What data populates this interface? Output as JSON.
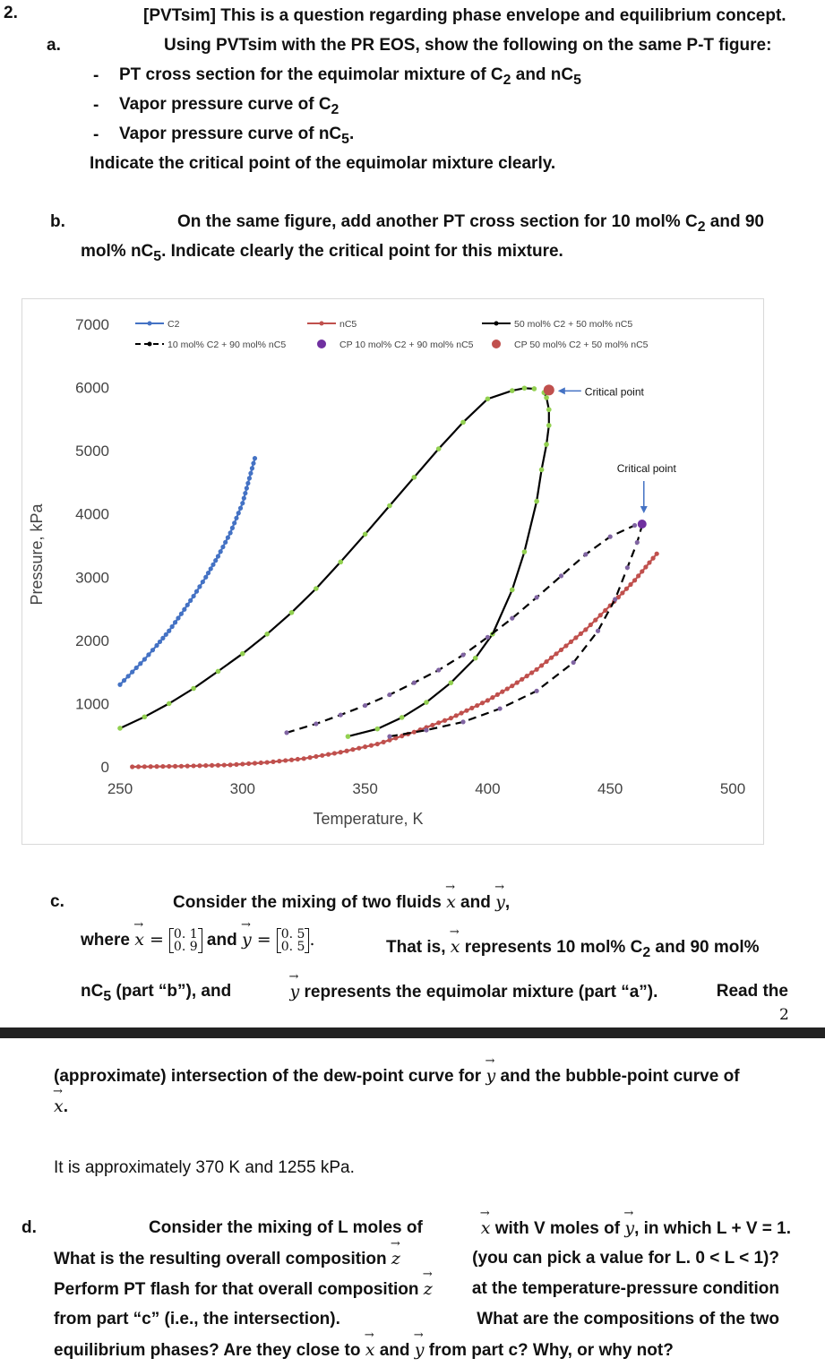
{
  "q2": {
    "number": "2.",
    "a_label": "a.",
    "intro_line1": "[PVTsim] This is a question regarding phase envelope and equilibrium concept.",
    "intro_line2": "Using PVTsim with the PR EOS, show the following on the same P-T figure:",
    "bullet_dash": "-",
    "bullet1_a": "PT cross section for the equimolar mixture of C",
    "bullet1_sub1": "2",
    "bullet1_b": " and nC",
    "bullet1_sub2": "5",
    "bullet2_a": "Vapor pressure curve of C",
    "bullet2_sub": "2",
    "bullet3_a": "Vapor pressure curve of nC",
    "bullet3_sub": "5",
    "bullet3_end": ".",
    "a_final": "Indicate the critical point of the equimolar mixture clearly.",
    "b_label": "b.",
    "b_line1_a": "On the same figure, add another PT cross section for 10 mol% C",
    "b_line1_sub": "2",
    "b_line1_b": " and 90",
    "b_line2_a": "mol% nC",
    "b_line2_sub": "5",
    "b_line2_b": ".   Indicate clearly the critical point for this mixture.",
    "c_label": "c.",
    "c_line1_a": "Consider the mixing of two fluids ",
    "c_x": "x",
    "c_and": " and ",
    "c_y": "y",
    "c_line1_end": ",",
    "c_where": "where ",
    "c_eq": " = ",
    "c_x_top": "0. 1",
    "c_x_bot": "0. 9",
    "c_y_top": "0. 5",
    "c_y_bot": "0. 5",
    "c_period": ".",
    "c_that": "That is,",
    "c_repr": "represents 10 mol% C",
    "c_repr_sub": "2",
    "c_repr_end": " and 90 mol%",
    "c_line3_a": "nC",
    "c_line3_sub": "5",
    "c_line3_b": " (part “b”), and",
    "c_line3_c": "represents the equimolar mixture (part “a”).",
    "c_line3_d": "Read the",
    "page_number": "2",
    "c_line4_a": "(approximate) intersection of the dew-point curve for",
    "c_line4_b": "and the bubble-point curve of",
    "c_line5_end": ".",
    "c_answer": "It is approximately 370 K and 1255 kPa.",
    "d_label": "d.",
    "d_line1_a": "Consider the mixing of L moles of",
    "d_line1_b": "with V moles of",
    "d_line1_c": ", in which L + V = 1.",
    "d_line2_a": "What is the resulting overall composition",
    "d_z": "z",
    "d_line2_b": "(you can pick a value for L.   0 < L < 1)?",
    "d_line3_a": "Perform PT flash for that overall composition",
    "d_line3_b": "at the temperature-pressure condition",
    "d_line4_a": "from part “c” (i.e., the intersection).",
    "d_line4_b": "What are the compositions of the two",
    "d_line5_a": "equilibrium phases?   Are they close to",
    "d_line5_b": "and",
    "d_line5_c": "from part c?   Why, or why not?"
  },
  "chart_data": {
    "type": "line",
    "xlabel": "Temperature, K",
    "ylabel": "Pressure, kPa",
    "xlim": [
      250,
      500
    ],
    "ylim": [
      0,
      7000
    ],
    "xticks": [
      "250",
      "300",
      "350",
      "400",
      "450",
      "500"
    ],
    "yticks": [
      "0",
      "1000",
      "2000",
      "3000",
      "4000",
      "5000",
      "6000",
      "7000"
    ],
    "legend_placement": "top",
    "annotations": [
      {
        "text": "Critical point",
        "x": 421,
        "y": 5940
      },
      {
        "text": "Critical point",
        "x": 463,
        "y": 3820
      }
    ],
    "series": [
      {
        "name": "C2",
        "color": "#4472c4",
        "style": "solid-markers",
        "x": [
          250,
          255,
          260,
          265,
          270,
          275,
          280,
          285,
          290,
          295,
          300,
          305
        ],
        "y": [
          1300,
          1500,
          1700,
          1920,
          2150,
          2420,
          2700,
          3000,
          3330,
          3700,
          4170,
          4880
        ]
      },
      {
        "name": "nC5",
        "color": "#c0504d",
        "style": "solid-markers",
        "x": [
          255,
          275,
          295,
          310,
          325,
          340,
          355,
          370,
          385,
          400,
          410,
          420,
          430,
          440,
          450,
          460,
          469
        ],
        "y": [
          0,
          10,
          30,
          70,
          130,
          230,
          360,
          550,
          770,
          1050,
          1280,
          1540,
          1850,
          2170,
          2550,
          2950,
          3370
        ]
      },
      {
        "name": "50 mol% C2 + 50 mol% nC5",
        "color": "#000000",
        "style": "solid-markers",
        "bubble_x": [
          250,
          260,
          270,
          280,
          290,
          300,
          310,
          320,
          330,
          340,
          350,
          360,
          370,
          380,
          390,
          400,
          410,
          415,
          419
        ],
        "bubble_y": [
          610,
          790,
          1000,
          1240,
          1510,
          1790,
          2100,
          2440,
          2820,
          3240,
          3680,
          4130,
          4580,
          5030,
          5450,
          5820,
          5950,
          5990,
          5980
        ],
        "dew_x": [
          343,
          355,
          365,
          375,
          385,
          395,
          402,
          410,
          415,
          420,
          422,
          424,
          425,
          425,
          424,
          423
        ],
        "dew_y": [
          480,
          600,
          780,
          1020,
          1330,
          1720,
          2100,
          2800,
          3400,
          4200,
          4700,
          5100,
          5400,
          5650,
          5840,
          5920
        ]
      },
      {
        "name": "10 mol% C2 + 90 mol% nC5",
        "color": "#000000",
        "style": "dashed-markers",
        "bubble_x": [
          318,
          330,
          340,
          350,
          360,
          370,
          380,
          390,
          400,
          410,
          420,
          430,
          440,
          450,
          460,
          463
        ],
        "bubble_y": [
          540,
          680,
          820,
          970,
          1140,
          1330,
          1530,
          1770,
          2050,
          2350,
          2680,
          3020,
          3360,
          3640,
          3820,
          3840
        ],
        "dew_x": [
          360,
          375,
          390,
          405,
          420,
          435,
          445,
          452,
          457,
          461,
          463
        ],
        "dew_y": [
          480,
          580,
          710,
          920,
          1200,
          1650,
          2150,
          2650,
          3150,
          3550,
          3820
        ]
      },
      {
        "name": "CP 10 mol% C2 + 90 mol% nC5",
        "color": "#7030a0",
        "style": "point",
        "x": [
          463
        ],
        "y": [
          3840
        ]
      },
      {
        "name": "CP 50 mol% C2 + 50 mol% nC5",
        "color": "#c0504d",
        "style": "point",
        "x": [
          425
        ],
        "y": [
          5960
        ]
      }
    ]
  }
}
